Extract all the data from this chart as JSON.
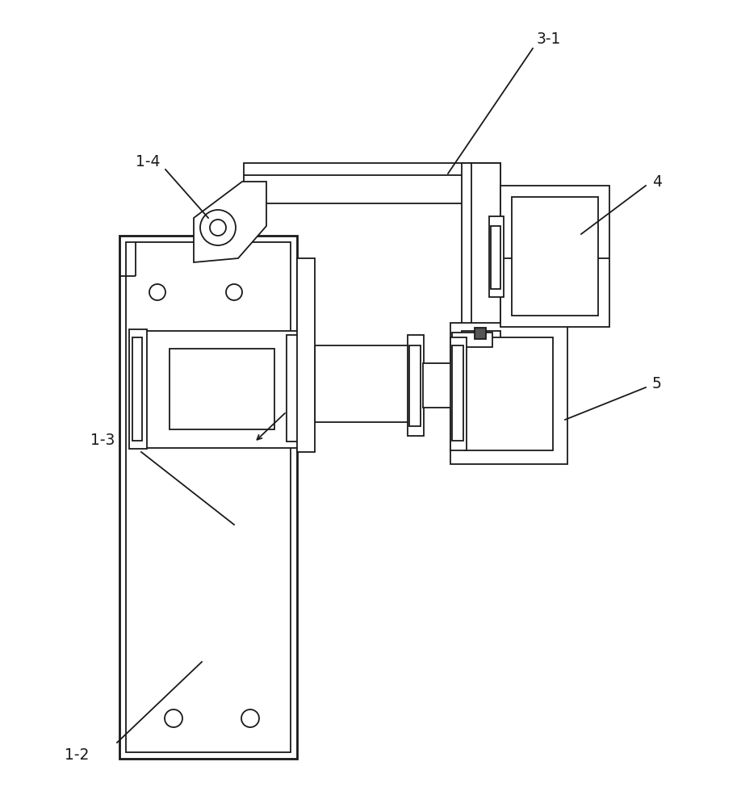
{
  "background_color": "#ffffff",
  "line_color": "#1a1a1a",
  "lw": 1.3,
  "lw_thick": 2.0,
  "figsize": [
    9.18,
    9.8
  ],
  "dpi": 100,
  "label_fontsize": 13.5
}
